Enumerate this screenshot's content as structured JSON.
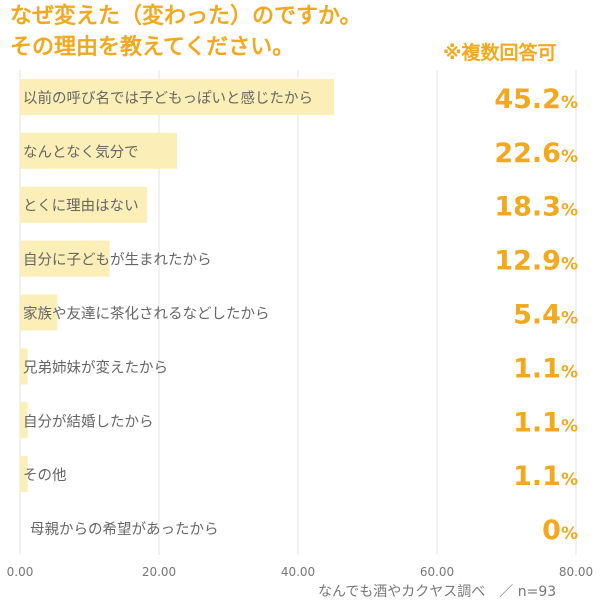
{
  "header": {
    "title_line1": "なぜ変えた（変わった）のですか。",
    "title_line2": "その理由を教えてください。",
    "note": "※複数回答可"
  },
  "footer": {
    "source": "なんでも酒やカクヤス調べ　／ n=93"
  },
  "colors": {
    "accent": "#f4a81d",
    "bar": "#fbeeb6",
    "grid": "#e3e3e3",
    "label": "#666666",
    "tick": "#777777"
  },
  "chart_data": {
    "type": "bar",
    "orientation": "horizontal",
    "title": "なぜ変えた（変わった）のですか。その理由を教えてください。",
    "categories": [
      "以前の呼び名では子どもっぽいと感じたから",
      "なんとなく気分で",
      "とくに理由はない",
      "自分に子どもが生まれたから",
      "家族や友達に茶化されるなどしたから",
      "兄弟姉妹が変えたから",
      "自分が結婚したから",
      "その他",
      "母親からの希望があったから"
    ],
    "values": [
      45.2,
      22.6,
      18.3,
      12.9,
      5.4,
      1.1,
      1.1,
      1.1,
      0
    ],
    "value_labels": [
      "45.2",
      "22.6",
      "18.3",
      "12.9",
      "5.4",
      "1.1",
      "1.1",
      "1.1",
      "0"
    ],
    "value_unit": "%",
    "xlim": [
      0,
      80
    ],
    "xticks": [
      "0.00",
      "20.00",
      "40.00",
      "60.00",
      "80.00"
    ],
    "grid": true,
    "xlabel": "",
    "ylabel": ""
  }
}
